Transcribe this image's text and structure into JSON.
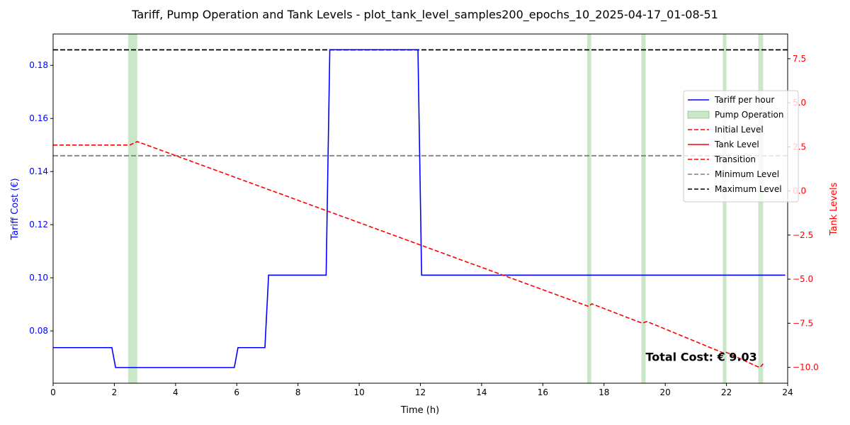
{
  "chart_data": {
    "type": "line",
    "title": "Tariff, Pump Operation and Tank Levels - plot_tank_level_samples200_epochs_10_2025-04-17_01-08-51",
    "xlabel": "Time (h)",
    "ylabel_left": "Tariff Cost (€)",
    "ylabel_right": "Tank Levels",
    "xlim": [
      0,
      24
    ],
    "ylim_left": [
      0.0603,
      0.1918
    ],
    "ylim_right": [
      -10.9,
      8.9
    ],
    "x_ticks": [
      0,
      2,
      4,
      6,
      8,
      10,
      12,
      14,
      16,
      18,
      20,
      22,
      24
    ],
    "y_ticks_left": [
      0.08,
      0.1,
      0.12,
      0.14,
      0.16,
      0.18
    ],
    "y_ticks_right": [
      -10.0,
      -7.5,
      -5.0,
      -2.5,
      0.0,
      2.5,
      5.0,
      7.5
    ],
    "y_tick_labels_left": [
      "0.08",
      "0.10",
      "0.12",
      "0.14",
      "0.16",
      "0.18"
    ],
    "y_tick_labels_right": [
      "−10.0",
      "−7.5",
      "−5.0",
      "−2.5",
      "0.0",
      "2.5",
      "5.0",
      "7.5"
    ],
    "grid": false,
    "legend_position": "right",
    "colors": {
      "tariff": "#0000ff",
      "pump": "#2ca02c",
      "tank": "#ff0000",
      "min_level": "#808080",
      "max_level": "#000000",
      "left_axis": "#0000ff",
      "right_axis": "#ff0000"
    },
    "series": [
      {
        "name": "Tariff per hour",
        "axis": "left",
        "x": [
          0,
          1.92,
          2.04,
          5.92,
          6.04,
          6.92,
          7.04,
          8.92,
          9.04,
          11.92,
          12.04,
          23.92
        ],
        "y": [
          0.0737,
          0.0737,
          0.0662,
          0.0662,
          0.0737,
          0.0737,
          0.101,
          0.101,
          0.1859,
          0.1859,
          0.101,
          0.101
        ]
      },
      {
        "name": "Initial Level",
        "axis": "right",
        "x": [
          0,
          2.5
        ],
        "y": [
          2.6,
          2.6
        ]
      },
      {
        "name": "Tank Level",
        "axis": "right",
        "x": [],
        "y": []
      },
      {
        "name": "Transition",
        "axis": "right",
        "x": [
          2.5,
          2.75,
          17.5,
          17.6,
          19.25,
          19.4,
          21.92,
          22.0,
          23.0,
          23.1,
          23.2
        ],
        "y": [
          2.6,
          2.8,
          -6.55,
          -6.4,
          -7.5,
          -7.4,
          -9.2,
          -9.15,
          -9.95,
          -10.0,
          -9.8
        ]
      }
    ],
    "pump_operation": {
      "name": "Pump Operation",
      "intervals": [
        [
          2.45,
          2.75
        ],
        [
          17.45,
          17.58
        ],
        [
          19.22,
          19.36
        ],
        [
          21.88,
          22.0
        ],
        [
          23.04,
          23.2
        ]
      ]
    },
    "min_level": {
      "name": "Minimum Level",
      "value": 2.0
    },
    "max_level": {
      "name": "Maximum Level",
      "value": 8.0
    },
    "legend": [
      "Tariff per hour",
      "Pump Operation",
      "Initial Level",
      "Tank Level",
      "Transition",
      "Minimum Level",
      "Maximum Level"
    ],
    "annotation": {
      "text": "Total Cost: € 9.03",
      "x": 23.0,
      "y": -9.4
    }
  }
}
